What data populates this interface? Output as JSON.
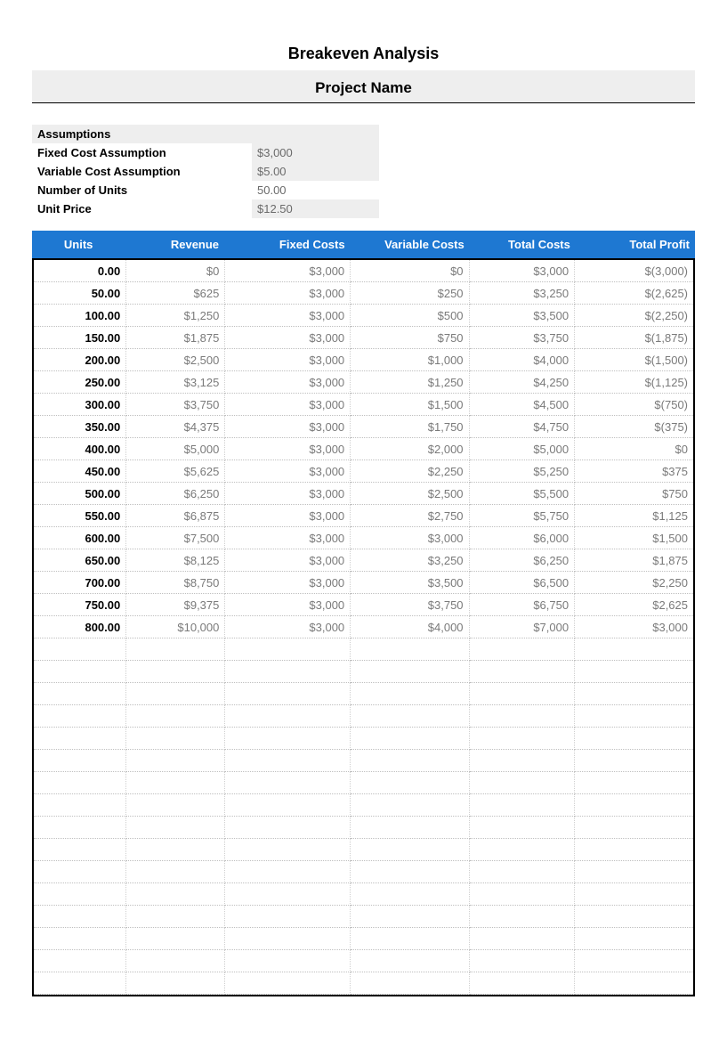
{
  "title": "Breakeven Analysis",
  "subtitle": "Project Name",
  "assumptions": {
    "heading": "Assumptions",
    "rows": [
      {
        "label": "Fixed Cost Assumption",
        "value": "$3,000",
        "shaded": true
      },
      {
        "label": "Variable Cost Assumption",
        "value": "$5.00",
        "shaded": true
      },
      {
        "label": "Number of Units",
        "value": "50.00",
        "shaded": false
      },
      {
        "label": "Unit Price",
        "value": "$12.50",
        "shaded": true
      }
    ]
  },
  "table": {
    "header_bg": "#1e78d2",
    "header_fg": "#ffffff",
    "grid_color": "#bfbfbf",
    "border_color": "#000000",
    "money_color": "#7a7a7a",
    "columns": [
      "Units",
      "Revenue",
      "Fixed Costs",
      "Variable Costs",
      "Total Costs",
      "Total Profit"
    ],
    "rows": [
      {
        "units": "0.00",
        "revenue": "$0",
        "fixed": "$3,000",
        "variable": "$0",
        "total_costs": "$3,000",
        "profit": "$(3,000)"
      },
      {
        "units": "50.00",
        "revenue": "$625",
        "fixed": "$3,000",
        "variable": "$250",
        "total_costs": "$3,250",
        "profit": "$(2,625)"
      },
      {
        "units": "100.00",
        "revenue": "$1,250",
        "fixed": "$3,000",
        "variable": "$500",
        "total_costs": "$3,500",
        "profit": "$(2,250)"
      },
      {
        "units": "150.00",
        "revenue": "$1,875",
        "fixed": "$3,000",
        "variable": "$750",
        "total_costs": "$3,750",
        "profit": "$(1,875)"
      },
      {
        "units": "200.00",
        "revenue": "$2,500",
        "fixed": "$3,000",
        "variable": "$1,000",
        "total_costs": "$4,000",
        "profit": "$(1,500)"
      },
      {
        "units": "250.00",
        "revenue": "$3,125",
        "fixed": "$3,000",
        "variable": "$1,250",
        "total_costs": "$4,250",
        "profit": "$(1,125)"
      },
      {
        "units": "300.00",
        "revenue": "$3,750",
        "fixed": "$3,000",
        "variable": "$1,500",
        "total_costs": "$4,500",
        "profit": "$(750)"
      },
      {
        "units": "350.00",
        "revenue": "$4,375",
        "fixed": "$3,000",
        "variable": "$1,750",
        "total_costs": "$4,750",
        "profit": "$(375)"
      },
      {
        "units": "400.00",
        "revenue": "$5,000",
        "fixed": "$3,000",
        "variable": "$2,000",
        "total_costs": "$5,000",
        "profit": "$0"
      },
      {
        "units": "450.00",
        "revenue": "$5,625",
        "fixed": "$3,000",
        "variable": "$2,250",
        "total_costs": "$5,250",
        "profit": "$375"
      },
      {
        "units": "500.00",
        "revenue": "$6,250",
        "fixed": "$3,000",
        "variable": "$2,500",
        "total_costs": "$5,500",
        "profit": "$750"
      },
      {
        "units": "550.00",
        "revenue": "$6,875",
        "fixed": "$3,000",
        "variable": "$2,750",
        "total_costs": "$5,750",
        "profit": "$1,125"
      },
      {
        "units": "600.00",
        "revenue": "$7,500",
        "fixed": "$3,000",
        "variable": "$3,000",
        "total_costs": "$6,000",
        "profit": "$1,500"
      },
      {
        "units": "650.00",
        "revenue": "$8,125",
        "fixed": "$3,000",
        "variable": "$3,250",
        "total_costs": "$6,250",
        "profit": "$1,875"
      },
      {
        "units": "700.00",
        "revenue": "$8,750",
        "fixed": "$3,000",
        "variable": "$3,500",
        "total_costs": "$6,500",
        "profit": "$2,250"
      },
      {
        "units": "750.00",
        "revenue": "$9,375",
        "fixed": "$3,000",
        "variable": "$3,750",
        "total_costs": "$6,750",
        "profit": "$2,625"
      },
      {
        "units": "800.00",
        "revenue": "$10,000",
        "fixed": "$3,000",
        "variable": "$4,000",
        "total_costs": "$7,000",
        "profit": "$3,000"
      }
    ],
    "empty_rows": 16
  }
}
